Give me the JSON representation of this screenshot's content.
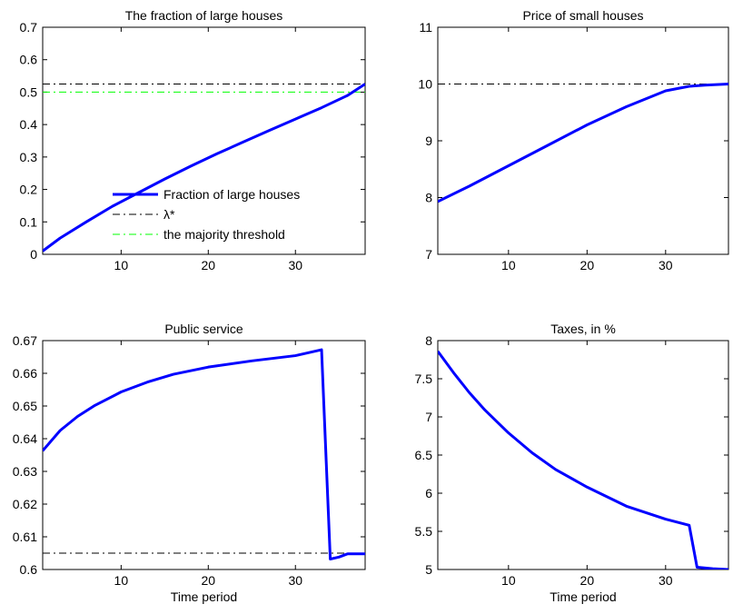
{
  "chart_data": [
    {
      "type": "line",
      "title": "The fraction of large houses",
      "xlabel": "",
      "ylabel": "",
      "xlim": [
        1,
        38
      ],
      "ylim": [
        0,
        0.7
      ],
      "xticks": [
        10,
        20,
        30
      ],
      "yticks": [
        0,
        0.1,
        0.2,
        0.3,
        0.4,
        0.5,
        0.6,
        0.7
      ],
      "ytick_labels": [
        "0",
        "0.1",
        "0.2",
        "0.3",
        "0.4",
        "0.5",
        "0.6",
        "0.7"
      ],
      "grid": false,
      "legend_position": "lower-center",
      "series": [
        {
          "name": "Fraction of large houses",
          "color": "#0000ff",
          "style": "solid",
          "width": 3,
          "x": [
            1,
            3,
            6,
            9,
            12,
            15,
            18,
            21,
            24,
            27,
            30,
            33,
            36,
            38
          ],
          "y": [
            0.01,
            0.05,
            0.1,
            0.148,
            0.19,
            0.232,
            0.272,
            0.31,
            0.346,
            0.382,
            0.417,
            0.452,
            0.49,
            0.525
          ]
        },
        {
          "name": "λ*",
          "color": "#000000",
          "style": "dashdot",
          "width": 1,
          "x": [
            1,
            38
          ],
          "y": [
            0.525,
            0.525
          ]
        },
        {
          "name": "the majority threshold",
          "color": "#00ff00",
          "style": "dashdot",
          "width": 1,
          "x": [
            1,
            38
          ],
          "y": [
            0.5,
            0.5
          ]
        }
      ]
    },
    {
      "type": "line",
      "title": "Price of small houses",
      "xlabel": "",
      "ylabel": "",
      "xlim": [
        1,
        38
      ],
      "ylim": [
        7,
        11
      ],
      "xticks": [
        10,
        20,
        30
      ],
      "yticks": [
        7,
        8,
        9,
        10,
        11
      ],
      "ytick_labels": [
        "7",
        "8",
        "9",
        "10",
        "11"
      ],
      "grid": false,
      "series": [
        {
          "color": "#0000ff",
          "style": "solid",
          "width": 3,
          "x": [
            1,
            5,
            10,
            15,
            20,
            25,
            30,
            33,
            35,
            38
          ],
          "y": [
            7.93,
            8.2,
            8.56,
            8.92,
            9.28,
            9.6,
            9.88,
            9.96,
            9.98,
            10.0
          ]
        },
        {
          "color": "#000000",
          "style": "dashdot",
          "width": 1,
          "x": [
            1,
            38
          ],
          "y": [
            10,
            10
          ]
        }
      ]
    },
    {
      "type": "line",
      "title": "Public service",
      "xlabel": "Time period",
      "ylabel": "",
      "xlim": [
        1,
        38
      ],
      "ylim": [
        0.6,
        0.67
      ],
      "xticks": [
        10,
        20,
        30
      ],
      "yticks": [
        0.6,
        0.61,
        0.62,
        0.63,
        0.64,
        0.65,
        0.66,
        0.67
      ],
      "ytick_labels": [
        "0.6",
        "0.61",
        "0.62",
        "0.63",
        "0.64",
        "0.65",
        "0.66",
        "0.67"
      ],
      "grid": false,
      "series": [
        {
          "color": "#0000ff",
          "style": "solid",
          "width": 3,
          "x": [
            1,
            3,
            5,
            7,
            10,
            13,
            16,
            20,
            25,
            30,
            33,
            34,
            35,
            36,
            38
          ],
          "y": [
            0.6363,
            0.6425,
            0.6468,
            0.6502,
            0.6543,
            0.6573,
            0.6597,
            0.6619,
            0.6638,
            0.6654,
            0.6672,
            0.6032,
            0.6038,
            0.6048,
            0.6048
          ]
        },
        {
          "color": "#000000",
          "style": "dashdot",
          "width": 1,
          "x": [
            1,
            38
          ],
          "y": [
            0.605,
            0.605
          ]
        }
      ]
    },
    {
      "type": "line",
      "title": "Taxes, in %",
      "xlabel": "Time period",
      "ylabel": "",
      "xlim": [
        1,
        38
      ],
      "ylim": [
        5,
        8
      ],
      "xticks": [
        10,
        20,
        30
      ],
      "yticks": [
        5,
        5.5,
        6,
        6.5,
        7,
        7.5,
        8
      ],
      "ytick_labels": [
        "5",
        "5.5",
        "6",
        "6.5",
        "7",
        "7.5",
        "8"
      ],
      "grid": false,
      "series": [
        {
          "color": "#0000ff",
          "style": "solid",
          "width": 3,
          "x": [
            1,
            3,
            5,
            7,
            10,
            13,
            16,
            20,
            25,
            30,
            33,
            34,
            36,
            38
          ],
          "y": [
            7.86,
            7.58,
            7.32,
            7.09,
            6.79,
            6.53,
            6.31,
            6.08,
            5.83,
            5.66,
            5.58,
            5.03,
            5.01,
            5.0
          ]
        },
        {
          "color": "#000000",
          "style": "dashdot",
          "width": 1,
          "x": [
            1,
            38
          ],
          "y": [
            5.0,
            5.0
          ]
        }
      ]
    }
  ]
}
